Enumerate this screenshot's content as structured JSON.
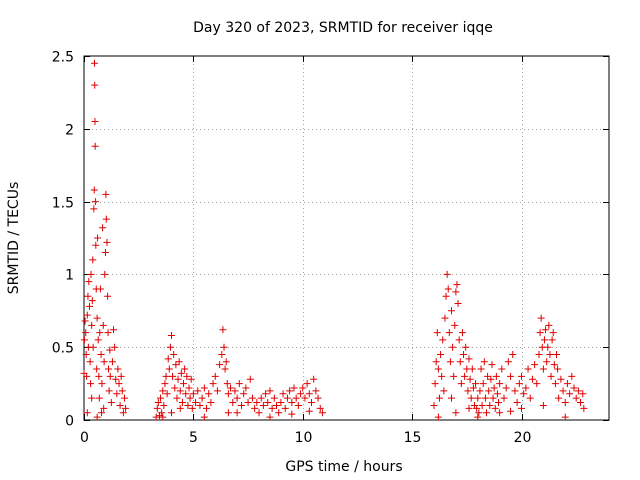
{
  "chart_data": {
    "type": "scatter",
    "title": "Day 320 of 2023, SRMTID for receiver iqqe",
    "xlabel": "GPS time / hours",
    "ylabel": "SRMTID / TECUs",
    "xlim": [
      0,
      24
    ],
    "ylim": [
      0,
      2.5
    ],
    "xticks": [
      "0",
      "5",
      "10",
      "15",
      "20"
    ],
    "yticks": [
      "0",
      "0.5",
      "1",
      "1.5",
      "2",
      "2.5"
    ],
    "xtick_values": [
      0,
      5,
      10,
      15,
      20
    ],
    "ytick_values": [
      0,
      0.5,
      1,
      1.5,
      2,
      2.5
    ],
    "grid": true,
    "marker": "+",
    "color": "#e00000",
    "series": [
      {
        "name": "SRMTID",
        "points": [
          [
            0.0,
            0.32
          ],
          [
            0.02,
            0.55
          ],
          [
            0.05,
            0.68
          ],
          [
            0.08,
            0.6
          ],
          [
            0.1,
            0.45
          ],
          [
            0.12,
            0.3
          ],
          [
            0.15,
            0.72
          ],
          [
            0.18,
            0.85
          ],
          [
            0.2,
            0.5
          ],
          [
            0.22,
            0.95
          ],
          [
            0.25,
            0.78
          ],
          [
            0.28,
            0.4
          ],
          [
            0.3,
            0.25
          ],
          [
            0.32,
            1.0
          ],
          [
            0.35,
            0.65
          ],
          [
            0.38,
            0.82
          ],
          [
            0.4,
            1.1
          ],
          [
            0.42,
            0.5
          ],
          [
            0.45,
            1.45
          ],
          [
            0.47,
            1.58
          ],
          [
            0.48,
            2.45
          ],
          [
            0.49,
            2.3
          ],
          [
            0.5,
            2.05
          ],
          [
            0.51,
            1.88
          ],
          [
            0.52,
            1.5
          ],
          [
            0.54,
            1.2
          ],
          [
            0.56,
            0.9
          ],
          [
            0.58,
            0.35
          ],
          [
            0.6,
            0.7
          ],
          [
            0.62,
            1.25
          ],
          [
            0.65,
            0.55
          ],
          [
            0.68,
            0.3
          ],
          [
            0.7,
            0.15
          ],
          [
            0.72,
            0.6
          ],
          [
            0.75,
            0.9
          ],
          [
            0.78,
            0.45
          ],
          [
            0.8,
            0.05
          ],
          [
            0.82,
            0.25
          ],
          [
            0.85,
            1.32
          ],
          [
            0.88,
            0.65
          ],
          [
            0.9,
            0.08
          ],
          [
            0.92,
            0.4
          ],
          [
            0.95,
            1.0
          ],
          [
            0.98,
            1.15
          ],
          [
            1.0,
            1.55
          ],
          [
            1.02,
            1.38
          ],
          [
            1.05,
            1.22
          ],
          [
            1.08,
            0.85
          ],
          [
            1.1,
            0.6
          ],
          [
            1.12,
            0.35
          ],
          [
            1.15,
            0.2
          ],
          [
            1.18,
            0.48
          ],
          [
            1.2,
            0.3
          ],
          [
            1.25,
            0.12
          ],
          [
            1.3,
            0.4
          ],
          [
            1.35,
            0.62
          ],
          [
            1.4,
            0.5
          ],
          [
            1.45,
            0.28
          ],
          [
            1.5,
            0.18
          ],
          [
            1.55,
            0.35
          ],
          [
            1.6,
            0.25
          ],
          [
            1.65,
            0.1
          ],
          [
            1.7,
            0.3
          ],
          [
            1.75,
            0.2
          ],
          [
            1.8,
            0.05
          ],
          [
            1.85,
            0.15
          ],
          [
            1.9,
            0.08
          ],
          [
            0.15,
            0.05
          ],
          [
            0.35,
            0.15
          ],
          [
            0.6,
            0.02
          ],
          [
            3.3,
            0.02
          ],
          [
            3.35,
            0.08
          ],
          [
            3.4,
            0.12
          ],
          [
            3.45,
            0.03
          ],
          [
            3.5,
            0.15
          ],
          [
            3.55,
            0.05
          ],
          [
            3.6,
            0.2
          ],
          [
            3.65,
            0.1
          ],
          [
            3.7,
            0.25
          ],
          [
            3.75,
            0.3
          ],
          [
            3.8,
            0.18
          ],
          [
            3.85,
            0.42
          ],
          [
            3.9,
            0.35
          ],
          [
            3.95,
            0.5
          ],
          [
            4.0,
            0.58
          ],
          [
            4.05,
            0.3
          ],
          [
            4.1,
            0.45
          ],
          [
            4.15,
            0.22
          ],
          [
            4.2,
            0.38
          ],
          [
            4.25,
            0.15
          ],
          [
            4.3,
            0.28
          ],
          [
            4.35,
            0.4
          ],
          [
            4.4,
            0.2
          ],
          [
            4.45,
            0.32
          ],
          [
            4.5,
            0.12
          ],
          [
            4.55,
            0.25
          ],
          [
            4.6,
            0.35
          ],
          [
            4.65,
            0.18
          ],
          [
            4.7,
            0.3
          ],
          [
            4.75,
            0.1
          ],
          [
            4.8,
            0.22
          ],
          [
            4.85,
            0.15
          ],
          [
            4.9,
            0.28
          ],
          [
            4.95,
            0.08
          ],
          [
            5.0,
            0.18
          ],
          [
            5.1,
            0.12
          ],
          [
            5.2,
            0.2
          ],
          [
            5.3,
            0.1
          ],
          [
            5.4,
            0.15
          ],
          [
            5.5,
            0.22
          ],
          [
            5.6,
            0.08
          ],
          [
            5.7,
            0.18
          ],
          [
            5.8,
            0.12
          ],
          [
            5.9,
            0.25
          ],
          [
            6.0,
            0.3
          ],
          [
            6.1,
            0.2
          ],
          [
            6.2,
            0.38
          ],
          [
            6.3,
            0.45
          ],
          [
            6.35,
            0.62
          ],
          [
            6.4,
            0.5
          ],
          [
            6.45,
            0.35
          ],
          [
            6.5,
            0.4
          ],
          [
            6.55,
            0.25
          ],
          [
            6.6,
            0.18
          ],
          [
            6.7,
            0.22
          ],
          [
            6.8,
            0.12
          ],
          [
            6.9,
            0.2
          ],
          [
            7.0,
            0.15
          ],
          [
            7.1,
            0.25
          ],
          [
            7.2,
            0.1
          ],
          [
            7.3,
            0.18
          ],
          [
            7.4,
            0.22
          ],
          [
            7.5,
            0.12
          ],
          [
            7.6,
            0.28
          ],
          [
            7.7,
            0.15
          ],
          [
            7.8,
            0.08
          ],
          [
            7.9,
            0.12
          ],
          [
            8.0,
            0.05
          ],
          [
            8.1,
            0.15
          ],
          [
            8.2,
            0.1
          ],
          [
            8.3,
            0.18
          ],
          [
            8.4,
            0.12
          ],
          [
            8.5,
            0.2
          ],
          [
            8.6,
            0.08
          ],
          [
            8.7,
            0.15
          ],
          [
            8.8,
            0.1
          ],
          [
            8.9,
            0.05
          ],
          [
            9.0,
            0.12
          ],
          [
            9.1,
            0.18
          ],
          [
            9.2,
            0.08
          ],
          [
            9.3,
            0.15
          ],
          [
            9.4,
            0.2
          ],
          [
            9.5,
            0.12
          ],
          [
            9.6,
            0.22
          ],
          [
            9.7,
            0.15
          ],
          [
            9.8,
            0.1
          ],
          [
            9.9,
            0.18
          ],
          [
            10.0,
            0.22
          ],
          [
            10.1,
            0.15
          ],
          [
            10.2,
            0.25
          ],
          [
            10.3,
            0.18
          ],
          [
            10.4,
            0.12
          ],
          [
            10.5,
            0.28
          ],
          [
            10.6,
            0.2
          ],
          [
            10.7,
            0.15
          ],
          [
            10.8,
            0.08
          ],
          [
            10.9,
            0.05
          ],
          [
            4.0,
            0.05
          ],
          [
            5.5,
            0.02
          ],
          [
            7.0,
            0.05
          ],
          [
            3.6,
            0.02
          ],
          [
            4.4,
            0.08
          ],
          [
            6.6,
            0.05
          ],
          [
            8.5,
            0.02
          ],
          [
            9.5,
            0.04
          ],
          [
            10.3,
            0.06
          ],
          [
            16.0,
            0.1
          ],
          [
            16.05,
            0.25
          ],
          [
            16.1,
            0.4
          ],
          [
            16.15,
            0.6
          ],
          [
            16.2,
            0.35
          ],
          [
            16.25,
            0.15
          ],
          [
            16.3,
            0.45
          ],
          [
            16.35,
            0.3
          ],
          [
            16.4,
            0.55
          ],
          [
            16.45,
            0.2
          ],
          [
            16.5,
            0.7
          ],
          [
            16.55,
            0.85
          ],
          [
            16.6,
            1.0
          ],
          [
            16.65,
            0.9
          ],
          [
            16.7,
            0.6
          ],
          [
            16.75,
            0.4
          ],
          [
            16.8,
            0.75
          ],
          [
            16.85,
            0.5
          ],
          [
            16.9,
            0.3
          ],
          [
            16.95,
            0.65
          ],
          [
            17.0,
            0.88
          ],
          [
            17.05,
            0.93
          ],
          [
            17.1,
            0.8
          ],
          [
            17.15,
            0.55
          ],
          [
            17.2,
            0.4
          ],
          [
            17.25,
            0.25
          ],
          [
            17.3,
            0.6
          ],
          [
            17.35,
            0.45
          ],
          [
            17.4,
            0.3
          ],
          [
            17.45,
            0.5
          ],
          [
            17.5,
            0.35
          ],
          [
            17.55,
            0.2
          ],
          [
            17.6,
            0.42
          ],
          [
            17.65,
            0.28
          ],
          [
            17.7,
            0.15
          ],
          [
            17.75,
            0.35
          ],
          [
            17.8,
            0.22
          ],
          [
            17.85,
            0.1
          ],
          [
            17.9,
            0.25
          ],
          [
            17.95,
            0.08
          ],
          [
            18.0,
            0.15
          ],
          [
            18.05,
            0.05
          ],
          [
            18.1,
            0.2
          ],
          [
            18.15,
            0.35
          ],
          [
            18.2,
            0.1
          ],
          [
            18.25,
            0.25
          ],
          [
            18.3,
            0.4
          ],
          [
            18.35,
            0.15
          ],
          [
            18.4,
            0.05
          ],
          [
            18.45,
            0.3
          ],
          [
            18.5,
            0.2
          ],
          [
            18.55,
            0.1
          ],
          [
            18.6,
            0.28
          ],
          [
            18.65,
            0.38
          ],
          [
            18.7,
            0.15
          ],
          [
            18.75,
            0.22
          ],
          [
            18.8,
            0.08
          ],
          [
            18.85,
            0.3
          ],
          [
            18.9,
            0.18
          ],
          [
            18.95,
            0.12
          ],
          [
            19.0,
            0.25
          ],
          [
            19.1,
            0.35
          ],
          [
            19.2,
            0.15
          ],
          [
            19.3,
            0.22
          ],
          [
            19.4,
            0.4
          ],
          [
            19.5,
            0.3
          ],
          [
            19.6,
            0.45
          ],
          [
            19.7,
            0.2
          ],
          [
            19.8,
            0.12
          ],
          [
            19.9,
            0.25
          ],
          [
            20.0,
            0.3
          ],
          [
            20.1,
            0.18
          ],
          [
            20.2,
            0.22
          ],
          [
            20.3,
            0.35
          ],
          [
            20.4,
            0.15
          ],
          [
            20.5,
            0.28
          ],
          [
            20.6,
            0.38
          ],
          [
            20.7,
            0.25
          ],
          [
            20.8,
            0.45
          ],
          [
            20.85,
            0.6
          ],
          [
            20.9,
            0.7
          ],
          [
            20.95,
            0.5
          ],
          [
            21.0,
            0.35
          ],
          [
            21.05,
            0.55
          ],
          [
            21.1,
            0.62
          ],
          [
            21.15,
            0.4
          ],
          [
            21.2,
            0.5
          ],
          [
            21.25,
            0.65
          ],
          [
            21.3,
            0.45
          ],
          [
            21.35,
            0.3
          ],
          [
            21.4,
            0.55
          ],
          [
            21.45,
            0.6
          ],
          [
            21.5,
            0.38
          ],
          [
            21.55,
            0.25
          ],
          [
            21.6,
            0.45
          ],
          [
            21.65,
            0.35
          ],
          [
            21.7,
            0.15
          ],
          [
            21.8,
            0.28
          ],
          [
            21.9,
            0.2
          ],
          [
            22.0,
            0.12
          ],
          [
            22.1,
            0.25
          ],
          [
            22.2,
            0.18
          ],
          [
            22.3,
            0.3
          ],
          [
            22.4,
            0.22
          ],
          [
            22.5,
            0.15
          ],
          [
            22.6,
            0.2
          ],
          [
            22.7,
            0.12
          ],
          [
            22.8,
            0.18
          ],
          [
            22.85,
            0.08
          ],
          [
            16.2,
            0.02
          ],
          [
            17.0,
            0.05
          ],
          [
            18.0,
            0.02
          ],
          [
            19.0,
            0.05
          ],
          [
            20.0,
            0.08
          ],
          [
            21.0,
            0.1
          ],
          [
            22.0,
            0.02
          ],
          [
            16.8,
            0.15
          ],
          [
            17.6,
            0.08
          ],
          [
            19.5,
            0.06
          ]
        ]
      }
    ]
  }
}
